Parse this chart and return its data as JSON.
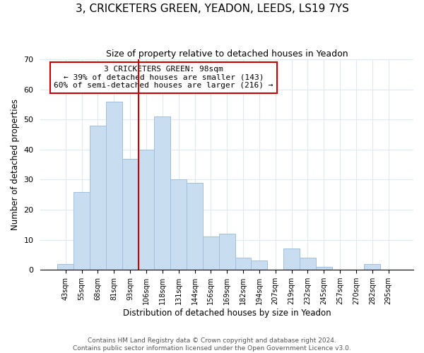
{
  "title": "3, CRICKETERS GREEN, YEADON, LEEDS, LS19 7YS",
  "subtitle": "Size of property relative to detached houses in Yeadon",
  "xlabel": "Distribution of detached houses by size in Yeadon",
  "ylabel": "Number of detached properties",
  "footer_line1": "Contains HM Land Registry data © Crown copyright and database right 2024.",
  "footer_line2": "Contains public sector information licensed under the Open Government Licence v3.0.",
  "bin_labels": [
    "43sqm",
    "55sqm",
    "68sqm",
    "81sqm",
    "93sqm",
    "106sqm",
    "118sqm",
    "131sqm",
    "144sqm",
    "156sqm",
    "169sqm",
    "182sqm",
    "194sqm",
    "207sqm",
    "219sqm",
    "232sqm",
    "245sqm",
    "257sqm",
    "270sqm",
    "282sqm",
    "295sqm"
  ],
  "bar_values": [
    2,
    26,
    48,
    56,
    37,
    40,
    51,
    30,
    29,
    11,
    12,
    4,
    3,
    0,
    7,
    4,
    1,
    0,
    0,
    2,
    0
  ],
  "bar_color": "#c9ddf0",
  "bar_edge_color": "#a0c0e0",
  "vline_color": "#cc0000",
  "ylim": [
    0,
    70
  ],
  "yticks": [
    0,
    10,
    20,
    30,
    40,
    50,
    60,
    70
  ],
  "annotation_title": "3 CRICKETERS GREEN: 98sqm",
  "annotation_line1": "← 39% of detached houses are smaller (143)",
  "annotation_line2": "60% of semi-detached houses are larger (216) →",
  "background_color": "#ffffff",
  "grid_color": "#e0e8f0",
  "title_fontsize": 11,
  "subtitle_fontsize": 9,
  "annotation_fontsize": 8,
  "footer_fontsize": 6.5
}
